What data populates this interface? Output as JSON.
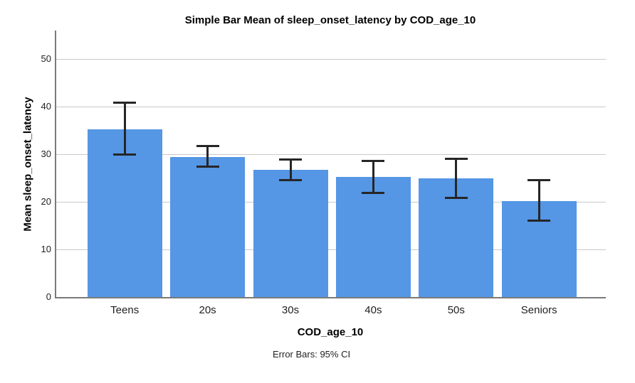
{
  "chart_data": {
    "type": "bar",
    "title": "Simple Bar Mean of sleep_onset_latency by COD_age_10",
    "xlabel": "COD_age_10",
    "ylabel": "Mean sleep_onset_latency",
    "footnote": "Error Bars: 95% CI",
    "categories": [
      "Teens",
      "20s",
      "30s",
      "40s",
      "50s",
      "Seniors"
    ],
    "series": [
      {
        "name": "Mean sleep_onset_latency",
        "values": [
          35.3,
          29.4,
          26.7,
          25.2,
          24.9,
          20.2
        ]
      }
    ],
    "error_bars": {
      "kind": "95% CI",
      "low": [
        29.7,
        27.1,
        24.4,
        21.6,
        20.6,
        15.8
      ],
      "high": [
        41.0,
        32.0,
        29.1,
        28.8,
        29.3,
        24.8
      ]
    },
    "yticks": [
      0,
      10,
      20,
      30,
      40,
      50
    ],
    "ylim": [
      0,
      56
    ],
    "grid": "horizontal",
    "legend": "none",
    "colors": {
      "bar_fill": "#5596e5",
      "gridline": "#c9c9c9",
      "axis_line": "#7a7a7a",
      "error_bar": "#262626"
    }
  }
}
